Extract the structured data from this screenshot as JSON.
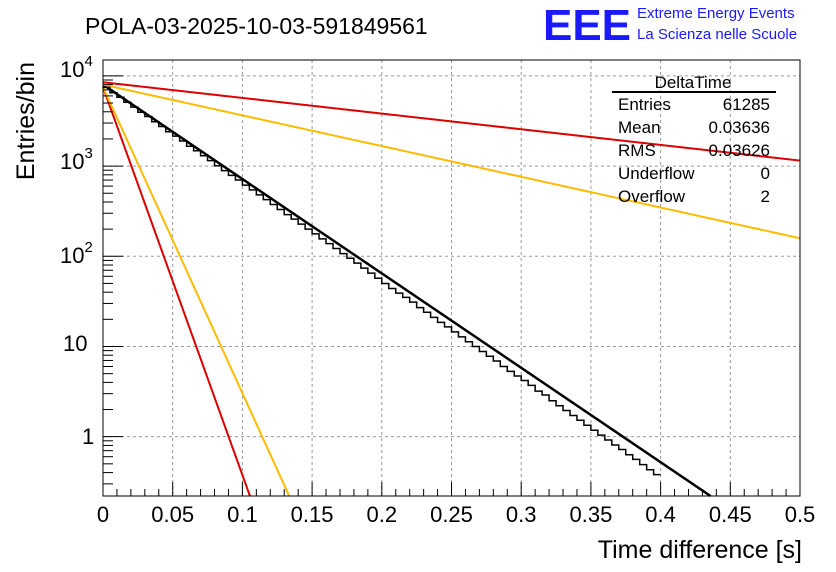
{
  "chart_data": {
    "type": "histogram",
    "title": "POLA-03-2025-10-03-591849561",
    "xlabel": "Time difference [s]",
    "ylabel": "Entries/bin",
    "xlim": [
      0,
      0.5
    ],
    "ylim": [
      0.22,
      15000
    ],
    "yscale": "log",
    "grid": true,
    "xticks": [
      "0",
      "0.05",
      "0.1",
      "0.15",
      "0.2",
      "0.25",
      "0.3",
      "0.35",
      "0.4",
      "0.45",
      "0.5"
    ],
    "bin_width": 0.005,
    "histogram_values": [
      7450,
      6500,
      5800,
      5100,
      4500,
      3950,
      3550,
      3100,
      2750,
      2400,
      2150,
      1900,
      1660,
      1480,
      1300,
      1150,
      1010,
      890,
      790,
      700,
      615,
      545,
      480,
      425,
      375,
      330,
      290,
      258,
      227,
      200,
      177,
      156,
      138,
      122,
      107,
      95,
      84,
      74,
      65,
      57,
      50,
      44,
      39,
      35,
      31,
      27,
      24,
      21,
      18.5,
      16.5,
      14.5,
      12.8,
      11.3,
      10,
      8.8,
      7.8,
      6.9,
      6,
      5.3,
      4.7,
      4.2,
      3.7,
      3.2,
      2.9,
      2.5,
      2.2,
      1.95,
      1.72,
      1.52,
      1.34,
      1.18,
      1.04,
      0.92,
      0.81,
      0.72,
      0.63,
      0.56,
      0.49,
      0.43,
      0.38
    ],
    "fit_curves": [
      {
        "name": "fit",
        "color": "#000000",
        "A": 8000,
        "tau": 0.0415
      },
      {
        "name": "red-slow",
        "color": "#dd0000",
        "A": 8500,
        "tau": 0.25
      },
      {
        "name": "yellow-slow",
        "color": "#ffbb00",
        "A": 8000,
        "tau": 0.1275
      },
      {
        "name": "red-fast",
        "color": "#dd0000",
        "A": 7500,
        "tau": 0.0101
      },
      {
        "name": "yellow-fast",
        "color": "#ffbb00",
        "A": 7500,
        "tau": 0.0128
      }
    ]
  },
  "stats": {
    "name": "DeltaTime",
    "rows": [
      {
        "label": "Entries",
        "value": "61285"
      },
      {
        "label": "Mean",
        "value": "0.03636"
      },
      {
        "label": "RMS",
        "value": "0.03626"
      },
      {
        "label": "Underflow",
        "value": "0"
      },
      {
        "label": "Overflow",
        "value": "2"
      }
    ]
  },
  "logo": {
    "text": "EEE",
    "line1": "Extreme Energy Events",
    "line2": "La Scienza nelle Scuole",
    "color": "#1a1aff"
  },
  "y_tick_labels": {
    "base": "10",
    "exp4": "4",
    "exp3": "3",
    "exp2": "2",
    "ten": "10",
    "one": "1"
  }
}
